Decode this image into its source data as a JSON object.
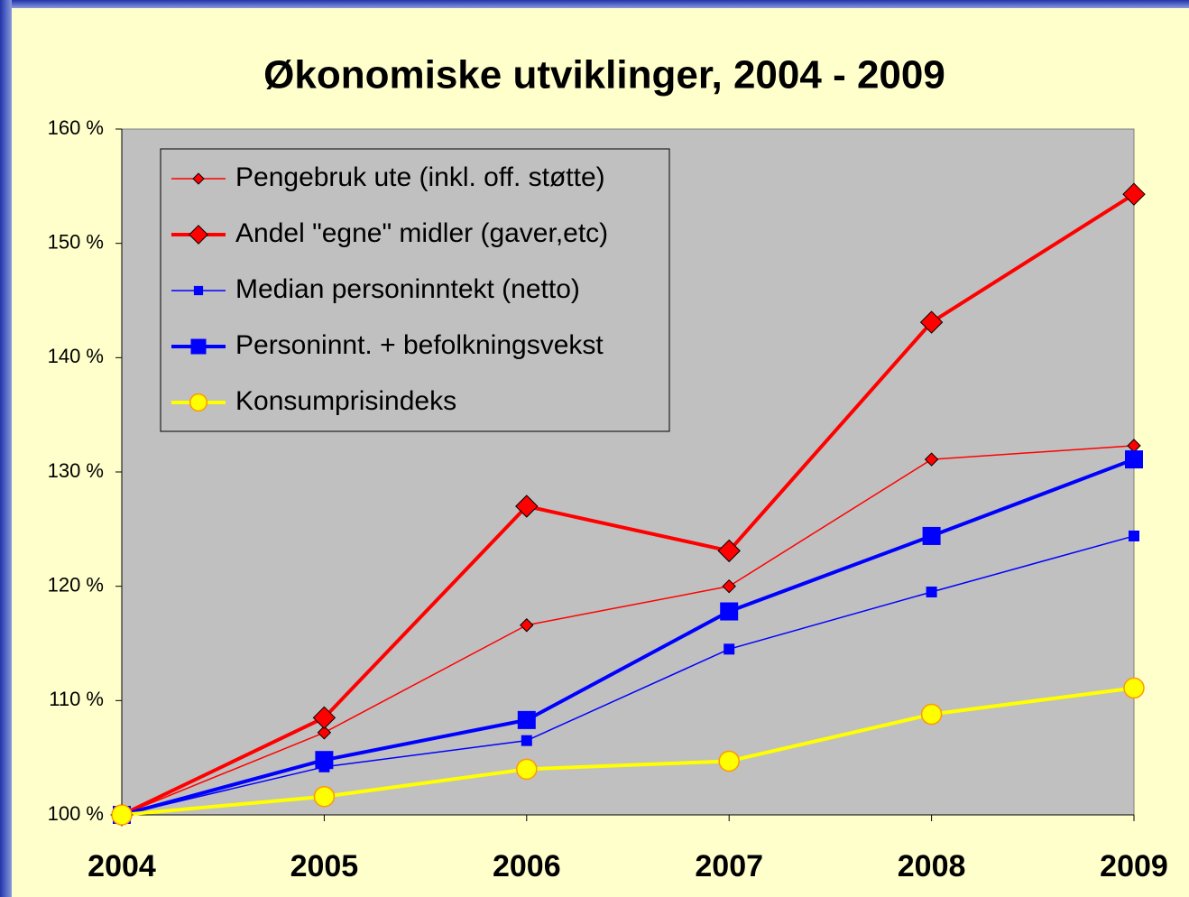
{
  "chart_data": {
    "type": "line",
    "title": "Økonomiske utviklinger, 2004 - 2009",
    "categories": [
      "2004",
      "2005",
      "2006",
      "2007",
      "2008",
      "2009"
    ],
    "series": [
      {
        "name": "Pengebruk ute (inkl. off. støtte)",
        "color": "#ff0000",
        "width": 1.5,
        "marker": "diamond",
        "marker_size": 7,
        "values": [
          100,
          107.2,
          116.6,
          120.0,
          131.1,
          132.3
        ]
      },
      {
        "name": "Andel \"egne\" midler (gaver,etc)",
        "color": "#ff0000",
        "width": 4,
        "marker": "diamond",
        "marker_size": 12,
        "values": [
          100,
          108.5,
          127.0,
          123.1,
          143.1,
          154.3
        ]
      },
      {
        "name": "Median personinntekt (netto)",
        "color": "#0000ff",
        "width": 1.5,
        "marker": "square",
        "marker_size": 6,
        "values": [
          100,
          104.2,
          106.5,
          114.5,
          119.5,
          124.4
        ]
      },
      {
        "name": "Personinnt. + befolkningsvekst",
        "color": "#0000ff",
        "width": 4,
        "marker": "square",
        "marker_size": 10,
        "values": [
          100,
          104.8,
          108.3,
          117.8,
          124.4,
          131.1
        ]
      },
      {
        "name": "Konsumprisindeks",
        "color": "#ffff00",
        "width": 4,
        "marker": "circle",
        "marker_size": 11,
        "values": [
          100,
          101.6,
          104.0,
          104.7,
          108.8,
          111.1
        ]
      }
    ],
    "ylim": [
      100,
      160
    ],
    "yticks": [
      {
        "value": 100,
        "label": "100 %"
      },
      {
        "value": 110,
        "label": "110 %"
      },
      {
        "value": 120,
        "label": "120 %"
      },
      {
        "value": 130,
        "label": "130 %"
      },
      {
        "value": 140,
        "label": "140 %"
      },
      {
        "value": 150,
        "label": "150 %"
      },
      {
        "value": 160,
        "label": "160 %"
      }
    ],
    "grid": false,
    "legend": "upper left"
  }
}
